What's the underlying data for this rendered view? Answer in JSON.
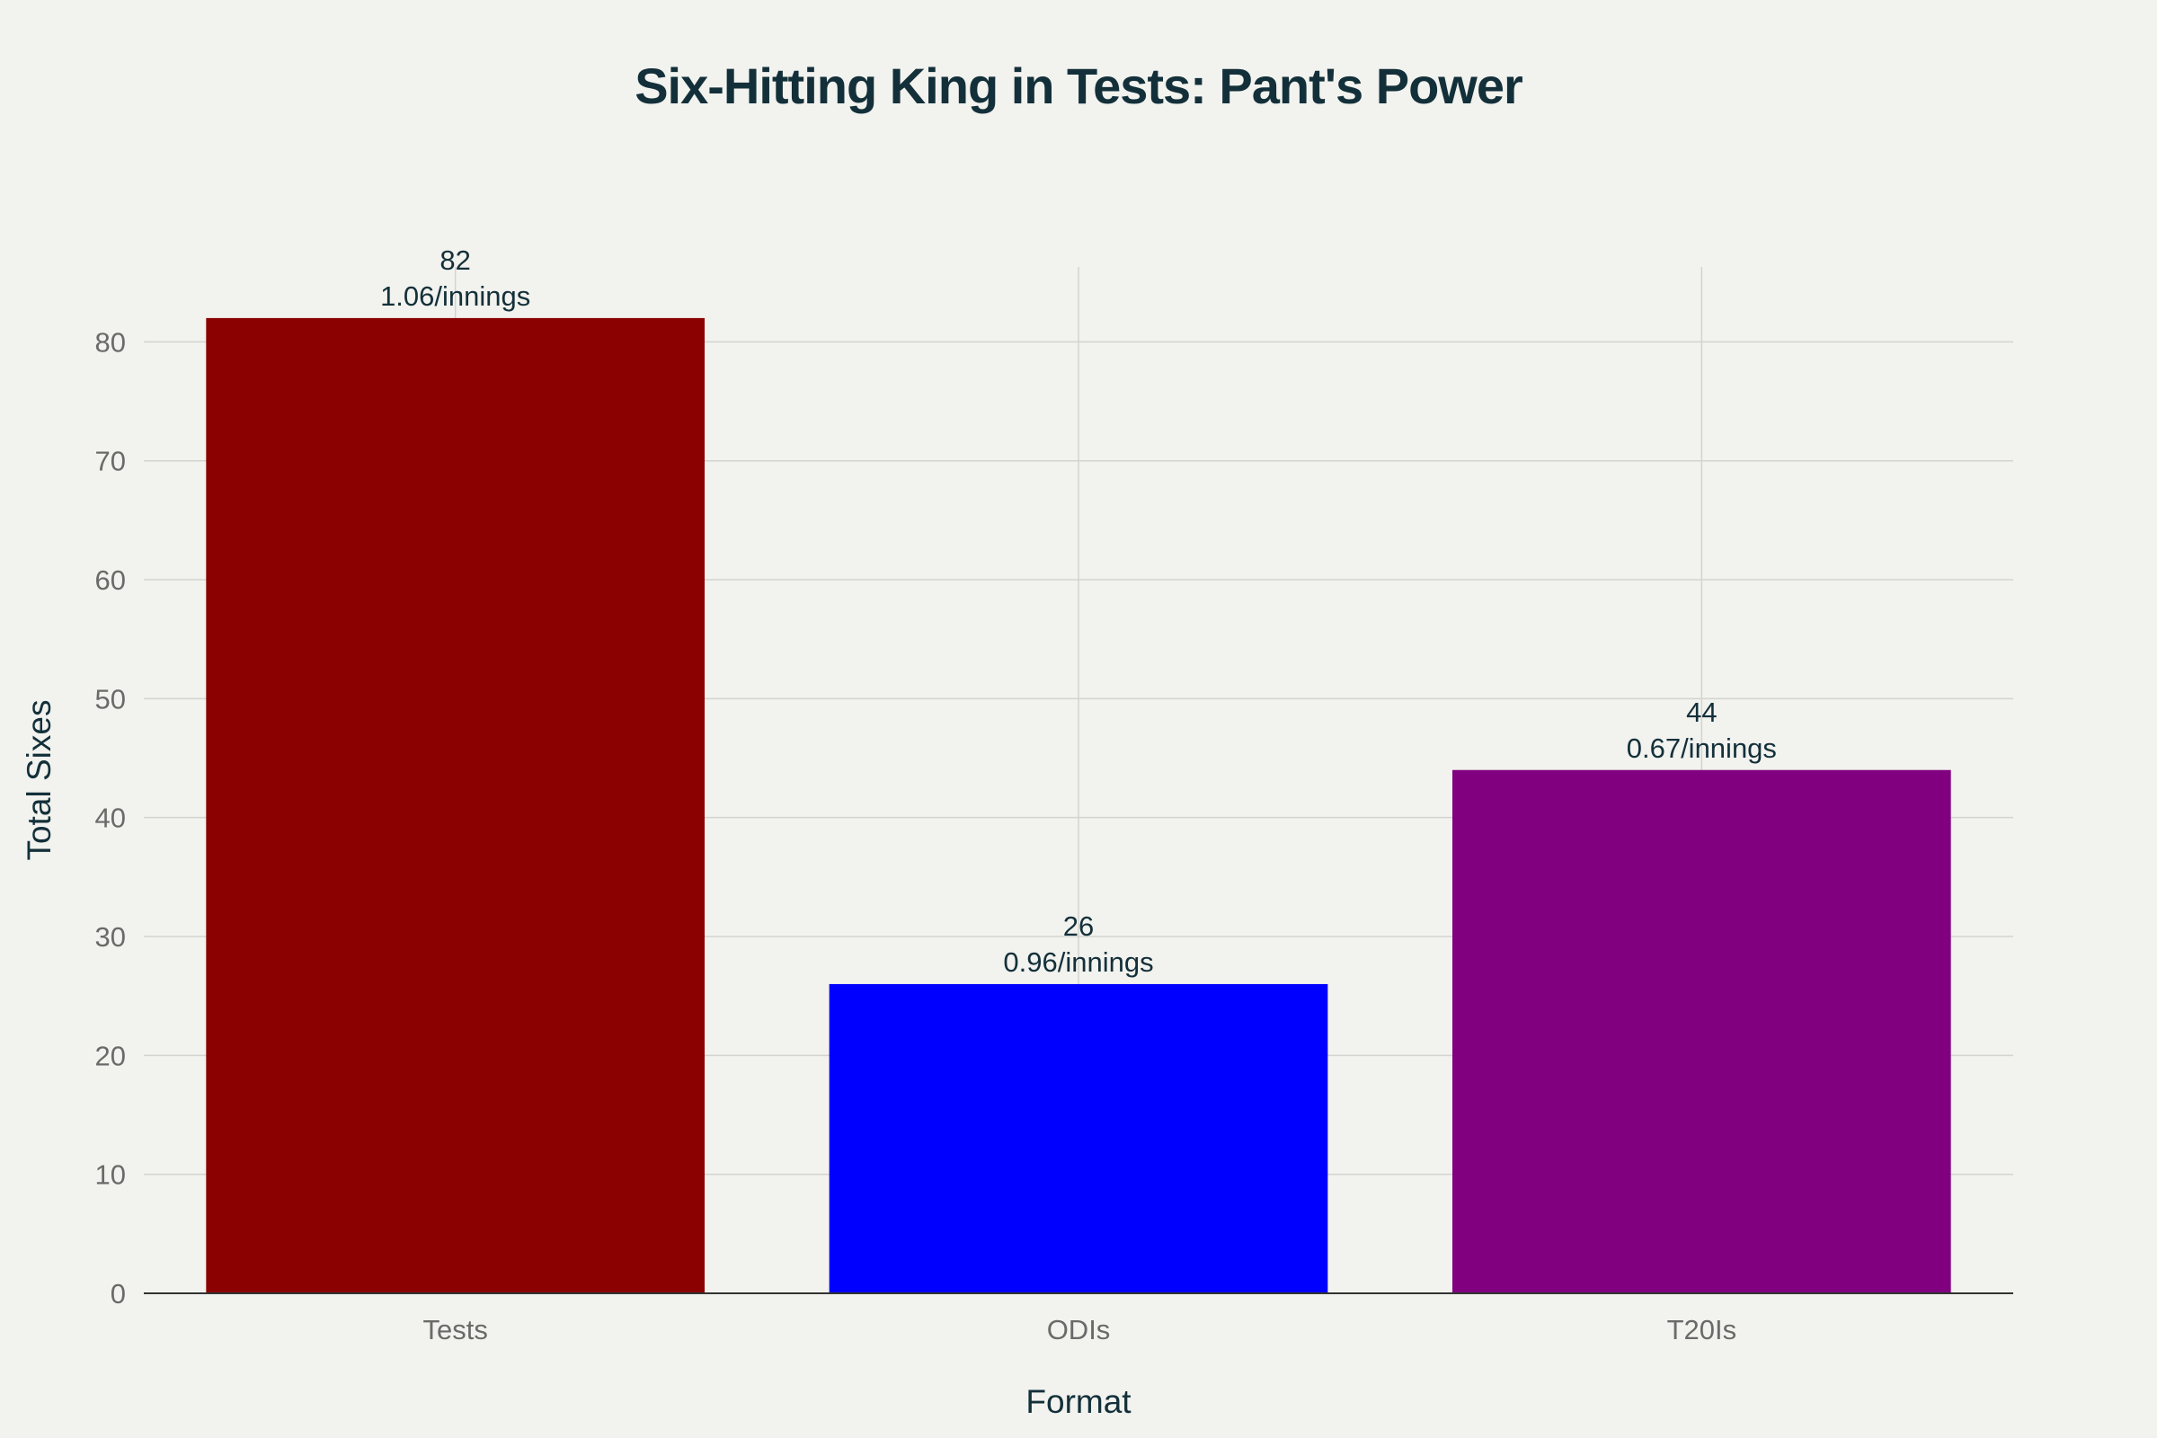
{
  "chart_data": {
    "type": "bar",
    "title": "Six-Hitting King in Tests: Pant's Power",
    "xlabel": "Format",
    "ylabel": "Total Sixes",
    "categories": [
      "Tests",
      "ODIs",
      "T20Is"
    ],
    "values": [
      82,
      26,
      44
    ],
    "data_labels": [
      [
        "82",
        "1.06/innings"
      ],
      [
        "26",
        "0.96/innings"
      ],
      [
        "44",
        "0.67/innings"
      ]
    ],
    "colors": [
      "#8b0000",
      "#0000ff",
      "#800080"
    ],
    "ylim": [
      0,
      86.3
    ],
    "yticks": [
      0,
      10,
      20,
      30,
      40,
      50,
      60,
      70,
      80
    ],
    "grid": true,
    "legend": "none"
  }
}
